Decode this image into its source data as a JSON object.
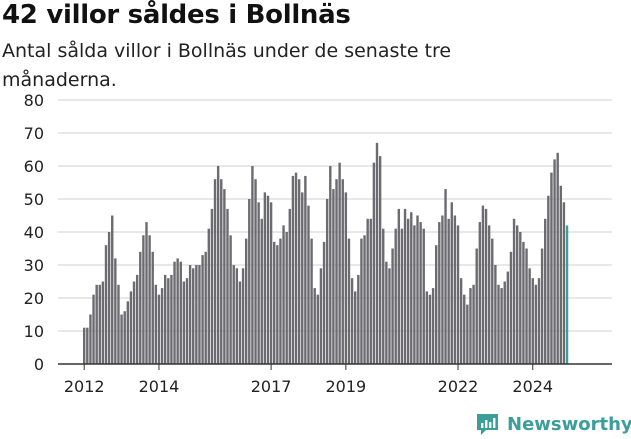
{
  "title": "42 villor såldes i Bollnäs",
  "subtitle": "Antal sålda villor i Bollnäs under de senaste tre månaderna.",
  "brand": {
    "name": "Newsworthy",
    "color": "#3a9e9a"
  },
  "colors": {
    "bar": "#6b6b70",
    "highlight": "#3a9e9a",
    "grid": "#d0d0d0",
    "axis": "#333333"
  },
  "chart_data": {
    "type": "bar",
    "title": "42 villor såldes i Bollnäs",
    "subtitle": "Antal sålda villor i Bollnäs under de senaste tre månaderna.",
    "xlabel": "",
    "ylabel": "",
    "ylim": [
      0,
      80
    ],
    "yticks": [
      0,
      10,
      20,
      30,
      40,
      50,
      60,
      70,
      80
    ],
    "xtick_labels": [
      "2012",
      "2014",
      "2017",
      "2019",
      "2022",
      "2024"
    ],
    "xtick_positions": [
      0,
      24,
      60,
      84,
      120,
      144
    ],
    "grid": true,
    "annotation": {
      "text": "42",
      "index": 160
    },
    "values": [
      11,
      11,
      15,
      21,
      24,
      24,
      25,
      36,
      40,
      45,
      32,
      24,
      15,
      16,
      19,
      22,
      25,
      27,
      34,
      39,
      43,
      39,
      34,
      24,
      21,
      23,
      27,
      26,
      27,
      31,
      32,
      31,
      25,
      26,
      30,
      29,
      30,
      30,
      33,
      34,
      41,
      47,
      56,
      60,
      56,
      53,
      47,
      39,
      30,
      29,
      25,
      29,
      38,
      50,
      60,
      56,
      49,
      44,
      52,
      51,
      49,
      37,
      36,
      38,
      42,
      40,
      47,
      57,
      58,
      56,
      52,
      57,
      48,
      38,
      23,
      21,
      29,
      37,
      50,
      60,
      53,
      56,
      61,
      56,
      52,
      38,
      26,
      22,
      27,
      38,
      39,
      44,
      44,
      61,
      67,
      63,
      41,
      31,
      29,
      35,
      41,
      47,
      41,
      47,
      44,
      46,
      42,
      45,
      43,
      41,
      22,
      21,
      23,
      36,
      43,
      45,
      53,
      44,
      49,
      45,
      42,
      26,
      21,
      18,
      23,
      24,
      35,
      43,
      48,
      47,
      42,
      38,
      30,
      24,
      23,
      25,
      28,
      34,
      44,
      42,
      40,
      37,
      35,
      29,
      26,
      24,
      26,
      35,
      44,
      51,
      58,
      62,
      64,
      54,
      49,
      42
    ]
  }
}
